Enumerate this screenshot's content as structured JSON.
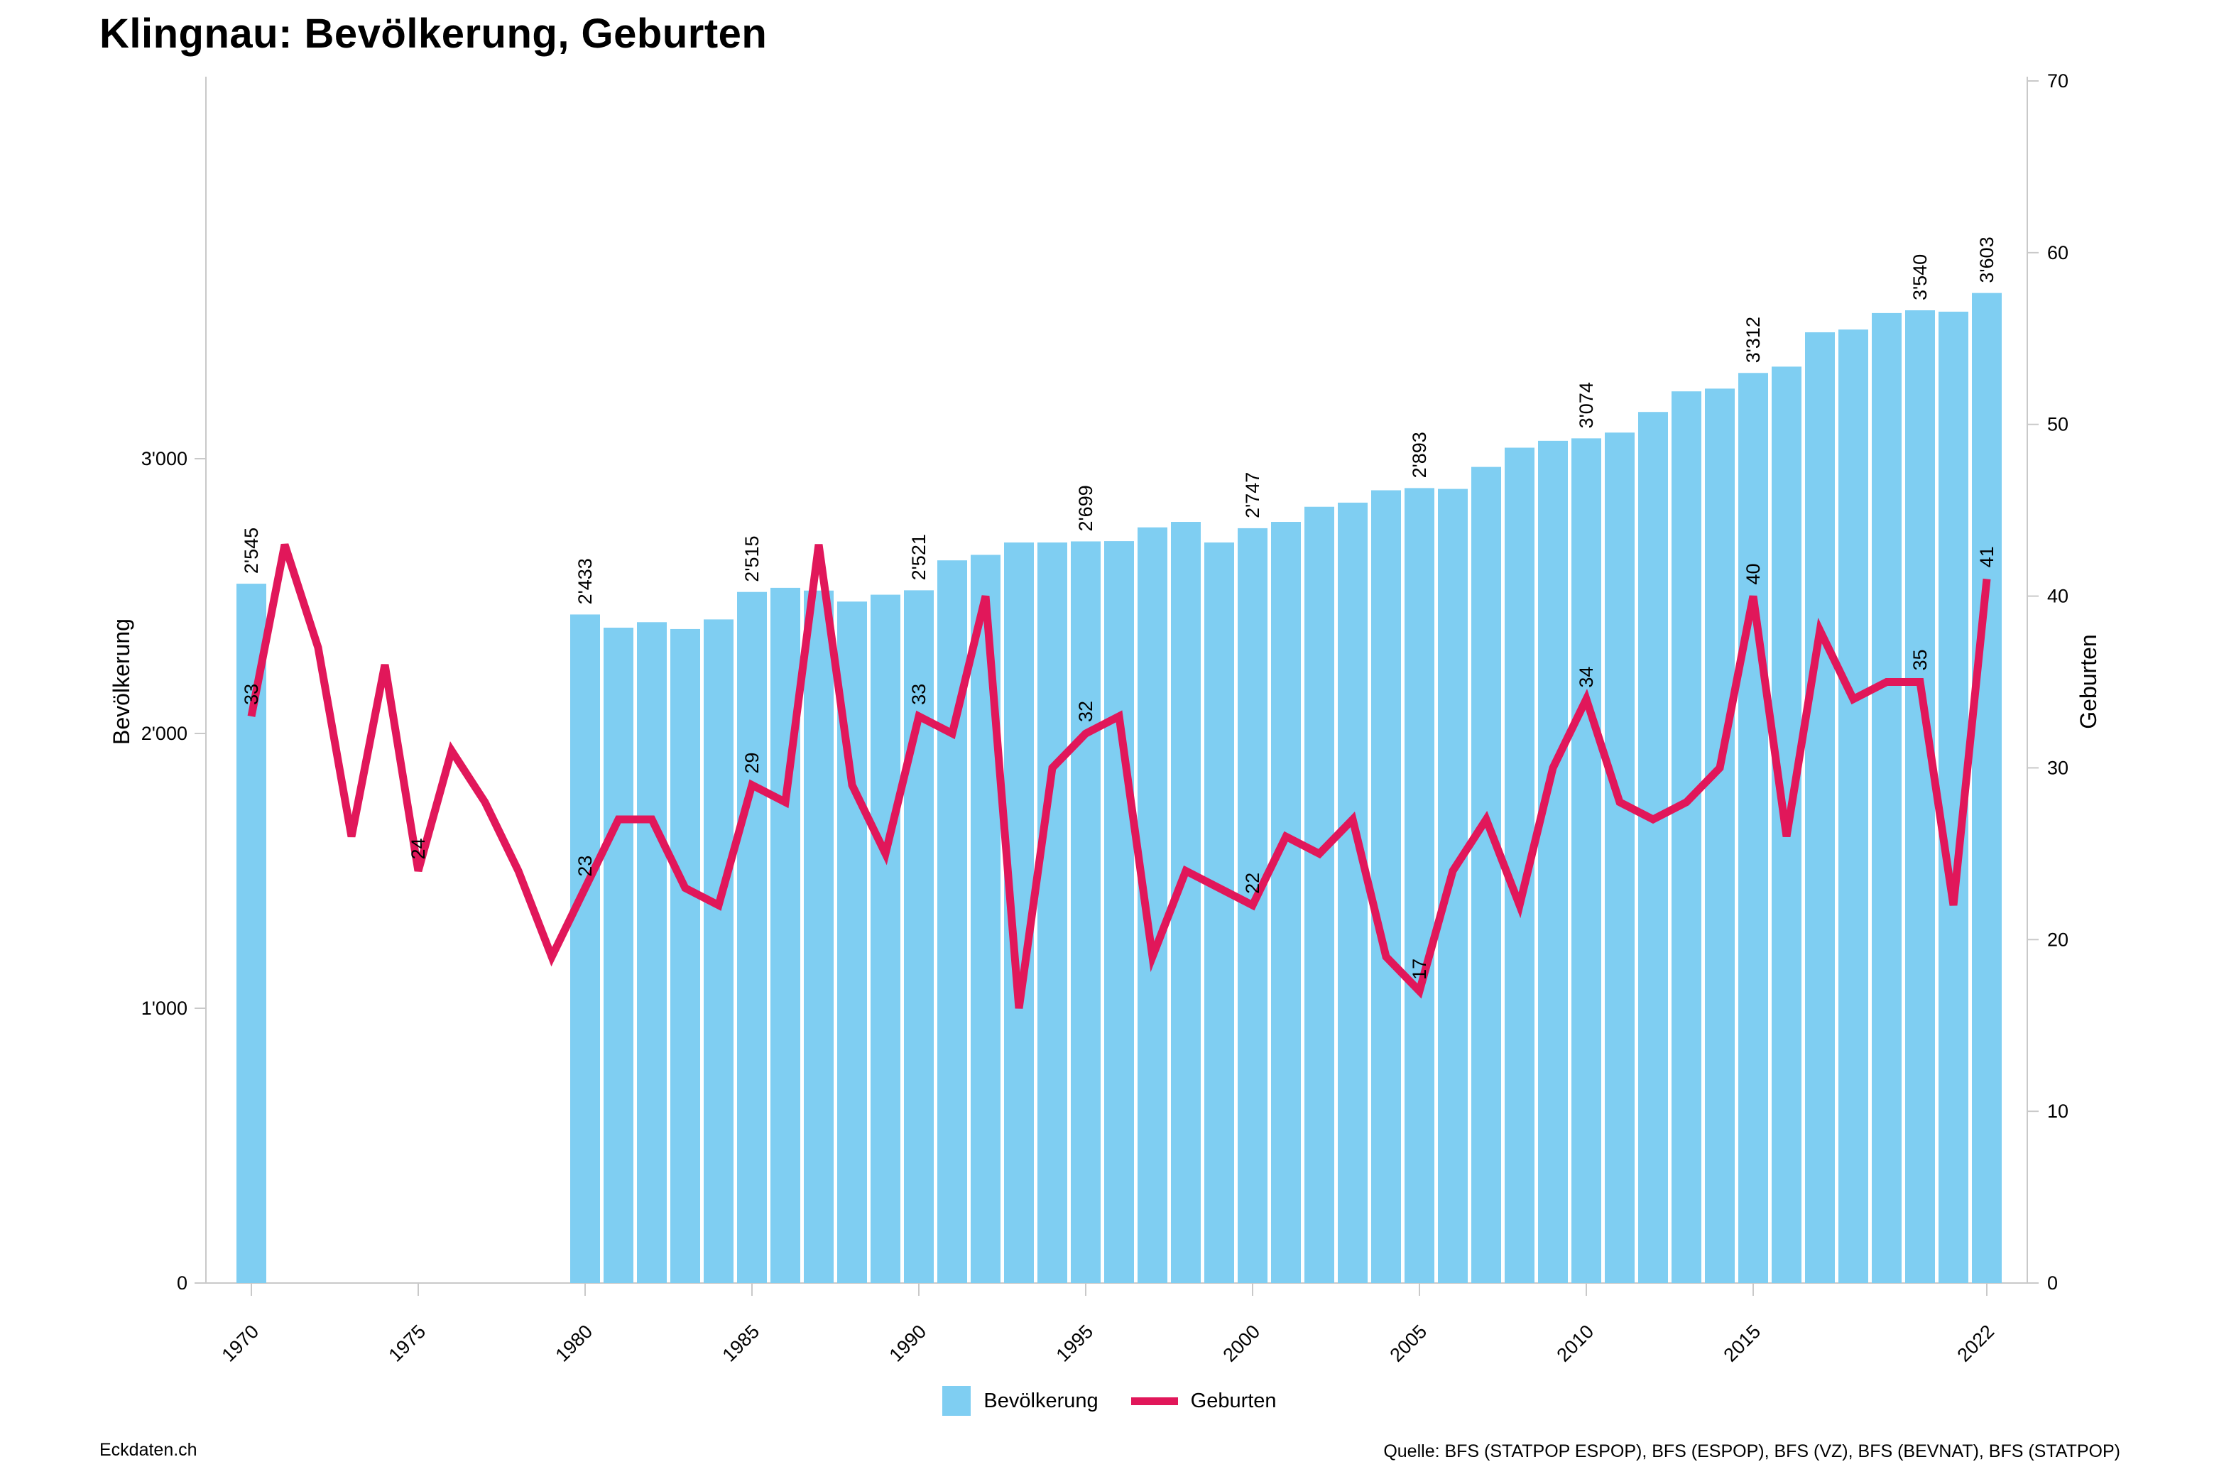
{
  "title": "Klingnau: Bevölkerung, Geburten",
  "legend": {
    "population": "Bevölkerung",
    "births": "Geburten"
  },
  "footer": {
    "left": "Eckdaten.ch",
    "right": "Quelle: BFS (STATPOP ESPOP), BFS (ESPOP), BFS (VZ), BFS (BEVNAT), BFS (STATPOP)"
  },
  "colors": {
    "bar": "#7fcef2",
    "line": "#e1175a",
    "axis": "#c9c9c9",
    "text": "#000000",
    "background": "#ffffff"
  },
  "axes": {
    "left": {
      "label": "Bevölkerung",
      "ticks": [
        0,
        1000,
        2000,
        3000
      ],
      "tick_labels": [
        "0",
        "1'000",
        "2'000",
        "3'000"
      ]
    },
    "right": {
      "label": "Geburten",
      "ticks": [
        0,
        10,
        20,
        30,
        40,
        50,
        60,
        70
      ],
      "range": [
        0,
        70
      ]
    },
    "x": {
      "tick_years": [
        1970,
        1975,
        1980,
        1985,
        1990,
        1995,
        2000,
        2005,
        2010,
        2015,
        2022
      ]
    }
  },
  "chart_data": {
    "type": "bar+line",
    "title": "Klingnau: Bevölkerung, Geburten",
    "years": [
      1970,
      1971,
      1972,
      1973,
      1974,
      1975,
      1976,
      1977,
      1978,
      1979,
      1980,
      1981,
      1982,
      1983,
      1984,
      1985,
      1986,
      1987,
      1988,
      1989,
      1990,
      1991,
      1992,
      1993,
      1994,
      1995,
      1996,
      1997,
      1998,
      1999,
      2000,
      2001,
      2002,
      2003,
      2004,
      2005,
      2006,
      2007,
      2008,
      2009,
      2010,
      2011,
      2012,
      2013,
      2014,
      2015,
      2016,
      2017,
      2018,
      2019,
      2020,
      2021,
      2022
    ],
    "series": [
      {
        "name": "Bevölkerung",
        "type": "bar",
        "axis": "left",
        "values": [
          2545,
          null,
          null,
          null,
          null,
          null,
          null,
          null,
          null,
          null,
          2433,
          2385,
          2405,
          2380,
          2415,
          2515,
          2530,
          2520,
          2480,
          2505,
          2521,
          2630,
          2650,
          2695,
          2695,
          2699,
          2700,
          2750,
          2770,
          2695,
          2747,
          2770,
          2825,
          2840,
          2885,
          2893,
          2890,
          2970,
          3040,
          3065,
          3074,
          3095,
          3170,
          3245,
          3255,
          3312,
          3335,
          3460,
          3470,
          3530,
          3540,
          3535,
          3603
        ]
      },
      {
        "name": "Geburten",
        "type": "line",
        "axis": "right",
        "values": [
          33,
          43,
          37,
          26,
          36,
          24,
          31,
          28,
          24,
          19,
          23,
          27,
          27,
          23,
          22,
          29,
          28,
          43,
          29,
          25,
          33,
          32,
          40,
          16,
          30,
          32,
          33,
          19,
          24,
          23,
          22,
          26,
          25,
          27,
          19,
          17,
          24,
          27,
          22,
          30,
          34,
          28,
          27,
          28,
          30,
          40,
          26,
          38,
          34,
          35,
          35,
          22,
          41
        ]
      }
    ],
    "label_years": [
      1970,
      1975,
      1980,
      1985,
      1990,
      1995,
      2000,
      2005,
      2010,
      2015,
      2020,
      2022
    ],
    "point_labels": {
      "population": {
        "1970": "2'545",
        "1980": "2'433",
        "1985": "2'515",
        "1990": "2'521",
        "1995": "2'699",
        "2000": "2'747",
        "2005": "2'893",
        "2010": "3'074",
        "2015": "3'312",
        "2020": "3'540",
        "2022": "3'603"
      },
      "births": {
        "1970": "33",
        "1975": "24",
        "1980": "23",
        "1985": "29",
        "1990": "33",
        "1995": "32",
        "2000": "22",
        "2005": "17",
        "2010": "34",
        "2015": "40",
        "2020": "35",
        "2022": "41"
      }
    },
    "ylim_left": [
      0,
      3750
    ],
    "ylim_right": [
      0,
      70
    ],
    "grid": false,
    "legend_position": "bottom"
  }
}
